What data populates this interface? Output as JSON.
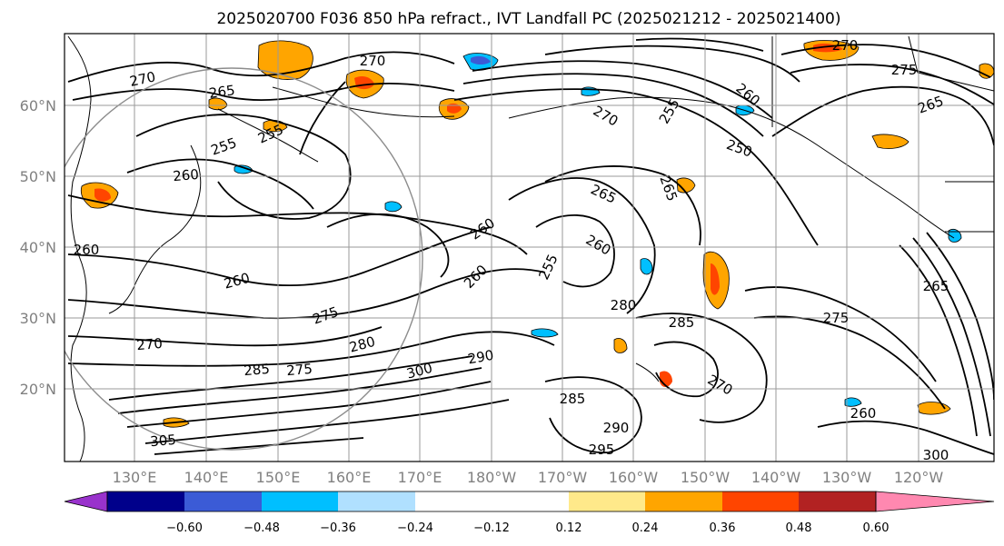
{
  "title": "2025020700 F036 850 hPa refract., IVT Landfall PC (2025021212 - 2025021400)",
  "map": {
    "lat_labels": [
      "60°N",
      "50°N",
      "40°N",
      "30°N",
      "20°N"
    ],
    "lon_labels": [
      "130°E",
      "140°E",
      "150°E",
      "160°E",
      "170°E",
      "180°W",
      "170°W",
      "160°W",
      "150°W",
      "140°W",
      "130°W",
      "120°W"
    ],
    "contour_labels": [
      {
        "text": "270",
        "region": "northwest"
      },
      {
        "text": "270",
        "region": "north-central"
      },
      {
        "text": "265",
        "region": "northwest"
      },
      {
        "text": "255",
        "region": "northwest"
      },
      {
        "text": "255",
        "region": "northwest"
      },
      {
        "text": "260",
        "region": "northwest"
      },
      {
        "text": "260",
        "region": "west"
      },
      {
        "text": "260",
        "region": "west-central"
      },
      {
        "text": "275",
        "region": "west-central"
      },
      {
        "text": "270",
        "region": "west"
      },
      {
        "text": "280",
        "region": "central"
      },
      {
        "text": "285",
        "region": "southwest"
      },
      {
        "text": "275",
        "region": "southwest"
      },
      {
        "text": "300",
        "region": "south-central"
      },
      {
        "text": "290",
        "region": "south-central"
      },
      {
        "text": "305",
        "region": "southwest"
      },
      {
        "text": "260",
        "region": "central"
      },
      {
        "text": "260",
        "region": "central"
      },
      {
        "text": "255",
        "region": "central"
      },
      {
        "text": "265",
        "region": "east-central"
      },
      {
        "text": "260",
        "region": "east-central"
      },
      {
        "text": "270",
        "region": "north-central"
      },
      {
        "text": "265",
        "region": "east-central"
      },
      {
        "text": "255",
        "region": "northeast"
      },
      {
        "text": "260",
        "region": "northeast"
      },
      {
        "text": "250",
        "region": "northeast"
      },
      {
        "text": "285",
        "region": "east"
      },
      {
        "text": "280",
        "region": "east-central"
      },
      {
        "text": "275",
        "region": "east"
      },
      {
        "text": "285",
        "region": "south-central"
      },
      {
        "text": "290",
        "region": "south-central"
      },
      {
        "text": "295",
        "region": "south-central"
      },
      {
        "text": "270",
        "region": "southeast"
      },
      {
        "text": "260",
        "region": "southeast"
      },
      {
        "text": "265",
        "region": "east"
      },
      {
        "text": "270",
        "region": "northeast"
      },
      {
        "text": "275",
        "region": "northeast"
      },
      {
        "text": "265",
        "region": "northeast"
      },
      {
        "text": "300",
        "region": "southeast"
      }
    ]
  },
  "colorbar": {
    "tick_labels": [
      "−0.60",
      "−0.48",
      "−0.36",
      "−0.24",
      "−0.12",
      "0.12",
      "0.24",
      "0.36",
      "0.48",
      "0.60"
    ],
    "colors": {
      "under": "#9932cc",
      "b1": "#00008b",
      "b2": "#3b5bd6",
      "b3": "#00bfff",
      "b4": "#b0e0ff",
      "b5": "#ffffff",
      "b6": "#ffffff",
      "b7": "#ffe98a",
      "b8": "#ffa500",
      "b9": "#ff4500",
      "b10": "#b22222",
      "over": "#ff88b0"
    }
  }
}
